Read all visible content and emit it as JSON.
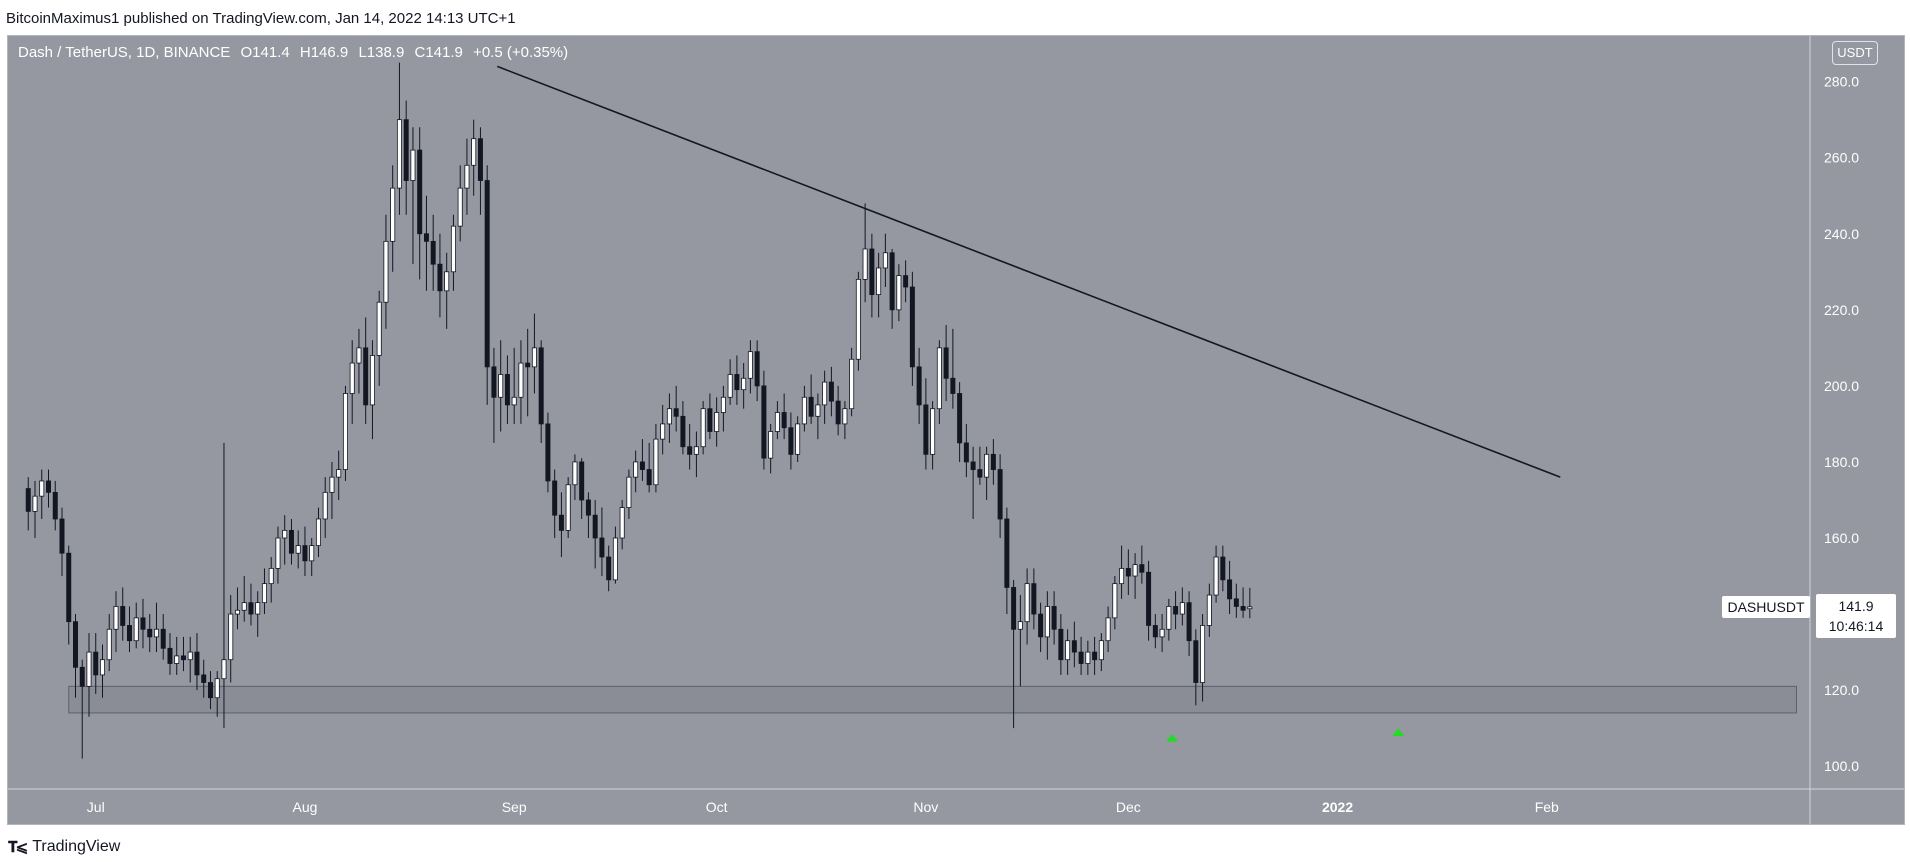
{
  "publisher_line": "BitcoinMaximus1 published on TradingView.com, Jan 14, 2022 14:13 UTC+1",
  "legend": {
    "symbol": "Dash / TetherUS, 1D, BINANCE",
    "o_label": "O",
    "o_value": "141.4",
    "h_label": "H",
    "h_value": "146.9",
    "l_label": "L",
    "l_value": "138.9",
    "c_label": "C",
    "c_value": "141.9",
    "change": "+0.5 (+0.35%)"
  },
  "currency_button": "USDT",
  "symbol_label": "DASHUSDT",
  "last_price": "141.9",
  "countdown": "10:46:14",
  "footer_brand": "TradingView",
  "colors": {
    "background": "#9598a1",
    "up_candle": "#ffffff",
    "down_candle": "#131722",
    "trendline": "#131722",
    "support_zone": "#8a8d96",
    "arrow": "#26d926",
    "axis_text": "#ffffff"
  },
  "chart_data": {
    "type": "candlestick",
    "ylim": [
      94,
      292
    ],
    "y_ticks": [
      100,
      120,
      140,
      160,
      180,
      200,
      220,
      240,
      260,
      280
    ],
    "y_tick_labels": [
      "100.0",
      "120.0",
      "140.0",
      "160.0",
      "180.0",
      "200.0",
      "220.0",
      "240.0",
      "260.0",
      "280.0"
    ],
    "x_range_days": [
      -3,
      264
    ],
    "x_ticks": [
      {
        "day": 10,
        "label": "Jul"
      },
      {
        "day": 41,
        "label": "Aug"
      },
      {
        "day": 72,
        "label": "Sep"
      },
      {
        "day": 102,
        "label": "Oct"
      },
      {
        "day": 133,
        "label": "Nov"
      },
      {
        "day": 163,
        "label": "Dec"
      },
      {
        "day": 194,
        "label": "2022"
      },
      {
        "day": 225,
        "label": "Feb"
      }
    ],
    "trendline": {
      "from": {
        "day": 69.5,
        "price": 284
      },
      "to": {
        "day": 227,
        "price": 176
      }
    },
    "support_zone": {
      "from_day": 6,
      "to_day": 262,
      "low": 114,
      "high": 121
    },
    "arrows": [
      {
        "day": 169.5,
        "price": 107.5
      },
      {
        "day": 203,
        "price": 109
      }
    ],
    "candles": [
      [
        0,
        173,
        176,
        162,
        167
      ],
      [
        1,
        167,
        175,
        160,
        171
      ],
      [
        2,
        171,
        178,
        165,
        175
      ],
      [
        3,
        175,
        178,
        168,
        172
      ],
      [
        4,
        172,
        175,
        162,
        165
      ],
      [
        5,
        165,
        168,
        150,
        156
      ],
      [
        6,
        156,
        158,
        132,
        138
      ],
      [
        7,
        138,
        140,
        118,
        126
      ],
      [
        8,
        126,
        128,
        102,
        121
      ],
      [
        9,
        121,
        135,
        113,
        130
      ],
      [
        10,
        130,
        135,
        119,
        124
      ],
      [
        11,
        124,
        132,
        118,
        128
      ],
      [
        12,
        128,
        140,
        125,
        136
      ],
      [
        13,
        136,
        146,
        130,
        142
      ],
      [
        14,
        142,
        147,
        133,
        137
      ],
      [
        15,
        137,
        142,
        130,
        133
      ],
      [
        16,
        133,
        143,
        131,
        139
      ],
      [
        17,
        139,
        144,
        131,
        136
      ],
      [
        18,
        136,
        140,
        130,
        134
      ],
      [
        19,
        134,
        143,
        130,
        136
      ],
      [
        20,
        136,
        140,
        128,
        131
      ],
      [
        21,
        131,
        135,
        124,
        127
      ],
      [
        22,
        127,
        134,
        124,
        129
      ],
      [
        23,
        129,
        134,
        125,
        128
      ],
      [
        24,
        128,
        134,
        122,
        130
      ],
      [
        25,
        130,
        135,
        120,
        124
      ],
      [
        26,
        124,
        128,
        118,
        122
      ],
      [
        27,
        122,
        125,
        115,
        118
      ],
      [
        28,
        118,
        125,
        113,
        123
      ],
      [
        29,
        123,
        185,
        110,
        128
      ],
      [
        30,
        128,
        145,
        122,
        140
      ],
      [
        31,
        140,
        147,
        136,
        141
      ],
      [
        32,
        141,
        150,
        138,
        143
      ],
      [
        33,
        143,
        148,
        137,
        140
      ],
      [
        34,
        140,
        146,
        134,
        143
      ],
      [
        35,
        143,
        152,
        140,
        148
      ],
      [
        36,
        148,
        155,
        143,
        152
      ],
      [
        37,
        152,
        163,
        148,
        160
      ],
      [
        38,
        160,
        166,
        153,
        162
      ],
      [
        39,
        162,
        165,
        153,
        156
      ],
      [
        40,
        156,
        162,
        152,
        158
      ],
      [
        41,
        158,
        163,
        150,
        154
      ],
      [
        42,
        154,
        160,
        150,
        158
      ],
      [
        43,
        158,
        168,
        155,
        165
      ],
      [
        44,
        165,
        176,
        160,
        172
      ],
      [
        45,
        172,
        180,
        165,
        176
      ],
      [
        46,
        176,
        183,
        170,
        178
      ],
      [
        47,
        178,
        200,
        175,
        198
      ],
      [
        48,
        198,
        212,
        190,
        206
      ],
      [
        49,
        206,
        215,
        198,
        210
      ],
      [
        50,
        210,
        218,
        190,
        195
      ],
      [
        51,
        195,
        212,
        186,
        208
      ],
      [
        52,
        208,
        225,
        200,
        222
      ],
      [
        53,
        222,
        245,
        215,
        238
      ],
      [
        54,
        238,
        258,
        230,
        252
      ],
      [
        55,
        252,
        285,
        245,
        270
      ],
      [
        56,
        270,
        275,
        245,
        254
      ],
      [
        57,
        254,
        268,
        232,
        262
      ],
      [
        58,
        262,
        268,
        228,
        240
      ],
      [
        59,
        240,
        250,
        225,
        238
      ],
      [
        60,
        238,
        245,
        225,
        232
      ],
      [
        61,
        232,
        240,
        218,
        225
      ],
      [
        62,
        225,
        235,
        215,
        230
      ],
      [
        63,
        230,
        245,
        225,
        242
      ],
      [
        64,
        242,
        258,
        238,
        252
      ],
      [
        65,
        252,
        265,
        245,
        258
      ],
      [
        66,
        258,
        270,
        250,
        265
      ],
      [
        67,
        265,
        268,
        245,
        254
      ],
      [
        68,
        254,
        258,
        195,
        205
      ],
      [
        69,
        205,
        210,
        185,
        197
      ],
      [
        70,
        197,
        212,
        188,
        203
      ],
      [
        71,
        203,
        208,
        190,
        195
      ],
      [
        72,
        195,
        210,
        190,
        197
      ],
      [
        73,
        197,
        212,
        190,
        206
      ],
      [
        74,
        206,
        215,
        192,
        205
      ],
      [
        75,
        205,
        219,
        198,
        210
      ],
      [
        76,
        210,
        212,
        185,
        190
      ],
      [
        77,
        190,
        193,
        172,
        175
      ],
      [
        78,
        175,
        178,
        160,
        166
      ],
      [
        79,
        166,
        172,
        155,
        162
      ],
      [
        80,
        162,
        176,
        160,
        174
      ],
      [
        81,
        174,
        182,
        170,
        180
      ],
      [
        82,
        180,
        181,
        165,
        170
      ],
      [
        83,
        170,
        172,
        160,
        166
      ],
      [
        84,
        166,
        170,
        152,
        160
      ],
      [
        85,
        160,
        168,
        150,
        155
      ],
      [
        86,
        155,
        158,
        146,
        149
      ],
      [
        87,
        149,
        163,
        148,
        160
      ],
      [
        88,
        160,
        170,
        157,
        168
      ],
      [
        89,
        168,
        178,
        165,
        176
      ],
      [
        90,
        176,
        183,
        172,
        180
      ],
      [
        91,
        180,
        186,
        175,
        178
      ],
      [
        92,
        178,
        185,
        172,
        174
      ],
      [
        93,
        174,
        190,
        172,
        186
      ],
      [
        94,
        186,
        195,
        182,
        190
      ],
      [
        95,
        190,
        198,
        185,
        194
      ],
      [
        96,
        194,
        200,
        188,
        192
      ],
      [
        97,
        192,
        196,
        182,
        184
      ],
      [
        98,
        184,
        190,
        178,
        182
      ],
      [
        99,
        182,
        188,
        176,
        184
      ],
      [
        100,
        184,
        196,
        182,
        194
      ],
      [
        101,
        194,
        198,
        186,
        188
      ],
      [
        102,
        188,
        197,
        184,
        193
      ],
      [
        103,
        193,
        200,
        188,
        197
      ],
      [
        104,
        197,
        207,
        195,
        203
      ],
      [
        105,
        203,
        208,
        195,
        199
      ],
      [
        106,
        199,
        206,
        194,
        202
      ],
      [
        107,
        202,
        212,
        198,
        209
      ],
      [
        108,
        209,
        212,
        196,
        200
      ],
      [
        109,
        200,
        204,
        178,
        181
      ],
      [
        110,
        181,
        190,
        177,
        188
      ],
      [
        111,
        188,
        196,
        186,
        193
      ],
      [
        112,
        193,
        198,
        186,
        189
      ],
      [
        113,
        189,
        193,
        178,
        182
      ],
      [
        114,
        182,
        192,
        180,
        190
      ],
      [
        115,
        190,
        200,
        188,
        197
      ],
      [
        116,
        197,
        203,
        190,
        192
      ],
      [
        117,
        192,
        198,
        186,
        195
      ],
      [
        118,
        195,
        204,
        190,
        201
      ],
      [
        119,
        201,
        205,
        192,
        196
      ],
      [
        120,
        196,
        200,
        187,
        190
      ],
      [
        121,
        190,
        196,
        186,
        194
      ],
      [
        122,
        194,
        210,
        192,
        207
      ],
      [
        123,
        207,
        230,
        204,
        228
      ],
      [
        124,
        228,
        248,
        222,
        236
      ],
      [
        125,
        236,
        240,
        218,
        224
      ],
      [
        126,
        224,
        235,
        218,
        231
      ],
      [
        127,
        231,
        240,
        226,
        235
      ],
      [
        128,
        235,
        236,
        215,
        220
      ],
      [
        129,
        220,
        232,
        217,
        229
      ],
      [
        130,
        229,
        233,
        222,
        226
      ],
      [
        131,
        226,
        230,
        200,
        205
      ],
      [
        132,
        205,
        210,
        190,
        195
      ],
      [
        133,
        195,
        202,
        178,
        182
      ],
      [
        134,
        182,
        196,
        178,
        194
      ],
      [
        135,
        194,
        212,
        190,
        210
      ],
      [
        136,
        210,
        216,
        196,
        202
      ],
      [
        137,
        202,
        215,
        194,
        198
      ],
      [
        138,
        198,
        201,
        180,
        185
      ],
      [
        139,
        185,
        190,
        176,
        180
      ],
      [
        140,
        180,
        184,
        165,
        178
      ],
      [
        141,
        178,
        184,
        174,
        176
      ],
      [
        142,
        176,
        184,
        170,
        182
      ],
      [
        143,
        182,
        186,
        174,
        178
      ],
      [
        144,
        178,
        182,
        160,
        165
      ],
      [
        145,
        165,
        168,
        140,
        147
      ],
      [
        146,
        147,
        149,
        110,
        136
      ],
      [
        147,
        136,
        145,
        121,
        138
      ],
      [
        148,
        138,
        152,
        132,
        148
      ],
      [
        149,
        148,
        152,
        136,
        140
      ],
      [
        150,
        140,
        143,
        130,
        134
      ],
      [
        151,
        134,
        146,
        128,
        142
      ],
      [
        152,
        142,
        146,
        132,
        136
      ],
      [
        153,
        136,
        140,
        124,
        128
      ],
      [
        154,
        128,
        136,
        124,
        133
      ],
      [
        155,
        133,
        138,
        126,
        130
      ],
      [
        156,
        130,
        134,
        124,
        127
      ],
      [
        157,
        127,
        133,
        124,
        130
      ],
      [
        158,
        130,
        134,
        124,
        128
      ],
      [
        159,
        128,
        135,
        125,
        133
      ],
      [
        160,
        133,
        142,
        130,
        139
      ],
      [
        161,
        139,
        150,
        136,
        148
      ],
      [
        162,
        148,
        158,
        144,
        152
      ],
      [
        163,
        152,
        157,
        145,
        150
      ],
      [
        164,
        150,
        156,
        144,
        153
      ],
      [
        165,
        153,
        158,
        148,
        151
      ],
      [
        166,
        151,
        154,
        133,
        137
      ],
      [
        167,
        137,
        140,
        131,
        134
      ],
      [
        168,
        134,
        140,
        130,
        136
      ],
      [
        169,
        136,
        144,
        133,
        142
      ],
      [
        170,
        142,
        146,
        136,
        140
      ],
      [
        171,
        140,
        147,
        137,
        143
      ],
      [
        172,
        143,
        146,
        129,
        133
      ],
      [
        173,
        133,
        136,
        116,
        122
      ],
      [
        174,
        122,
        140,
        117,
        137
      ],
      [
        175,
        137,
        148,
        134,
        145
      ],
      [
        176,
        145,
        158,
        143,
        155
      ],
      [
        177,
        155,
        158,
        146,
        149
      ],
      [
        178,
        149,
        154,
        140,
        144
      ],
      [
        179,
        144,
        148,
        139,
        142
      ],
      [
        180,
        142,
        147,
        139,
        141
      ],
      [
        181,
        141.4,
        146.9,
        138.9,
        141.9
      ]
    ]
  }
}
